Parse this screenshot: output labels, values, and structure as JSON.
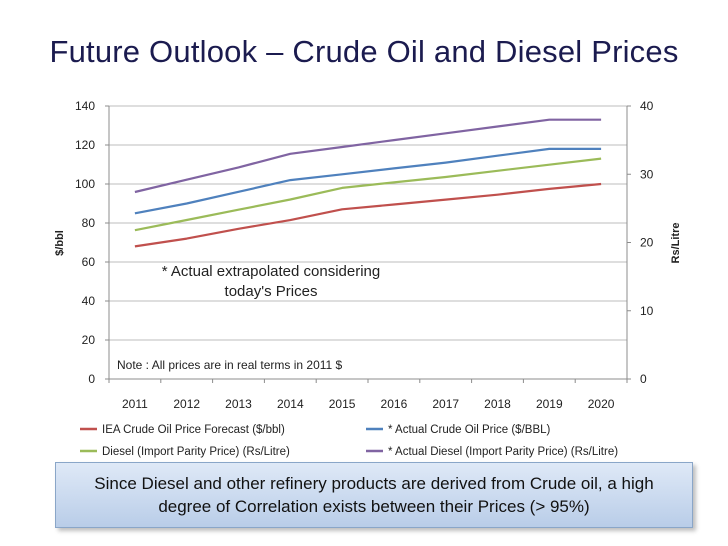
{
  "title": "Future Outlook – Crude Oil and Diesel Prices",
  "summary": "Since Diesel and other refinery products are derived from Crude oil, a high degree of Correlation exists between their Prices (> 95%)",
  "chart_data": {
    "type": "line",
    "categories": [
      "2011",
      "2012",
      "2013",
      "2014",
      "2015",
      "2016",
      "2017",
      "2018",
      "2019",
      "2020"
    ],
    "ylabel": "$/bbl",
    "y2label": "Rs/Litre",
    "ylim": [
      0,
      140
    ],
    "y2lim": [
      0,
      40
    ],
    "yticks": [
      0,
      20,
      40,
      60,
      80,
      100,
      120,
      140
    ],
    "y2ticks": [
      0,
      10,
      20,
      30,
      40
    ],
    "grid": true,
    "legend_position": "bottom",
    "note": "Note : All prices are in real terms in 2011 $",
    "annotation_line1": "* Actual extrapolated considering",
    "annotation_line2": "today's Prices",
    "series": [
      {
        "name": "IEA Crude Oil Price Forecast ($/bbl)",
        "axis": "left",
        "color": "#c0504d",
        "values": [
          68,
          72,
          77,
          81.5,
          87,
          89.5,
          92,
          94.5,
          97.5,
          100
        ]
      },
      {
        "name": "* Actual Crude Oil Price ($/BBL)",
        "axis": "left",
        "color": "#4f81bd",
        "values": [
          85,
          90,
          96,
          102,
          105,
          108,
          111,
          114.5,
          118,
          118
        ]
      },
      {
        "name": "Diesel (Import Parity Price) (Rs/Litre)",
        "axis": "right",
        "color": "#9bbb59",
        "values": [
          21.8,
          23.3,
          24.8,
          26.3,
          28.0,
          28.8,
          29.6,
          30.5,
          31.4,
          32.3
        ]
      },
      {
        "name": "* Actual Diesel (Import Parity Price) (Rs/Litre)",
        "axis": "right",
        "color": "#8064a2",
        "values": [
          27.4,
          29.2,
          31.0,
          33.0,
          34.0,
          35.0,
          36.0,
          37.0,
          38.0,
          38.0
        ]
      }
    ]
  }
}
